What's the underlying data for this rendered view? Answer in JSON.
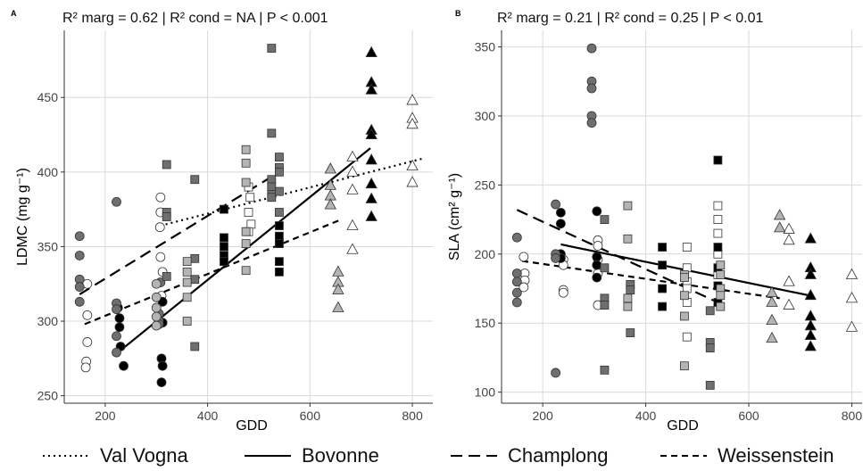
{
  "chart_data": [
    {
      "panel": "A",
      "type": "scatter",
      "title": "R² marg = 0.62  | R² cond = NA  | P < 0.001",
      "xlabel": "GDD",
      "ylabel": "LDMC (mg g⁻¹)",
      "xlim": [
        120,
        840
      ],
      "ylim": [
        245,
        495
      ],
      "xticks": [
        200,
        400,
        600,
        800
      ],
      "yticks": [
        250,
        300,
        350,
        400,
        450
      ],
      "grid": true,
      "series": [
        {
          "name": "Val Vogna",
          "fill": "#ffffff",
          "shape": "circle",
          "points": [
            [
              165,
              286
            ],
            [
              163,
              273
            ],
            [
              162,
              269
            ],
            [
              165,
              304
            ],
            [
              165,
              325
            ],
            [
              308,
              383
            ],
            [
              308,
              373
            ],
            [
              307,
              363
            ],
            [
              308,
              343
            ],
            [
              312,
              333
            ],
            [
              310,
              317
            ],
            [
              480,
              390
            ],
            [
              483,
              383
            ],
            [
              480,
              373
            ],
            [
              485,
              365
            ],
            [
              480,
              360
            ],
            [
              683,
              410
            ],
            [
              683,
              400
            ],
            [
              683,
              388
            ],
            [
              683,
              364
            ],
            [
              683,
              348
            ],
            [
              800,
              448
            ],
            [
              800,
              436
            ],
            [
              800,
              432
            ],
            [
              800,
              404
            ],
            [
              800,
              393
            ]
          ]
        },
        {
          "name": "Bovonne",
          "fill": "#000000",
          "shape": "circle",
          "points": [
            [
              225,
              309
            ],
            [
              228,
              302
            ],
            [
              228,
              296
            ],
            [
              230,
              283
            ],
            [
              236,
              270
            ],
            [
              312,
              313
            ],
            [
              312,
              299
            ],
            [
              310,
              275
            ],
            [
              312,
              270
            ],
            [
              310,
              259
            ],
            [
              432,
              375
            ],
            [
              432,
              356
            ],
            [
              432,
              350
            ],
            [
              432,
              344
            ],
            [
              432,
              340
            ],
            [
              540,
              364
            ],
            [
              540,
              357
            ],
            [
              540,
              352
            ],
            [
              540,
              340
            ],
            [
              540,
              333
            ],
            [
              720,
              480
            ],
            [
              720,
              460
            ],
            [
              720,
              455
            ],
            [
              720,
              428
            ],
            [
              720,
              425
            ],
            [
              720,
              408
            ],
            [
              720,
              392
            ],
            [
              720,
              382
            ],
            [
              720,
              370
            ]
          ]
        },
        {
          "name": "Champlong",
          "fill": "#6f6f6f",
          "shape": "circle",
          "points": [
            [
              150,
              357
            ],
            [
              150,
              344
            ],
            [
              150,
              328
            ],
            [
              150,
              323
            ],
            [
              150,
              313
            ],
            [
              222,
              380
            ],
            [
              222,
              312
            ],
            [
              222,
              308
            ],
            [
              222,
              290
            ],
            [
              222,
              279
            ],
            [
              305,
              305
            ],
            [
              305,
              300
            ],
            [
              305,
              298
            ],
            [
              308,
              326
            ],
            [
              320,
              405
            ],
            [
              320,
              373
            ],
            [
              320,
              370
            ],
            [
              320,
              330
            ],
            [
              375,
              395
            ],
            [
              375,
              342
            ],
            [
              375,
              328
            ],
            [
              375,
              283
            ],
            [
              525,
              483
            ],
            [
              525,
              426
            ],
            [
              525,
              395
            ],
            [
              525,
              390
            ],
            [
              525,
              385
            ],
            [
              525,
              383
            ],
            [
              540,
              410
            ],
            [
              540,
              403
            ],
            [
              540,
              400
            ],
            [
              540,
              387
            ],
            [
              540,
              373
            ]
          ]
        },
        {
          "name": "Weissenstein",
          "fill": "#b4b4b4",
          "shape": "circle",
          "points": [
            [
              300,
              325
            ],
            [
              300,
              316
            ],
            [
              300,
              309
            ],
            [
              300,
              303
            ],
            [
              300,
              297
            ],
            [
              360,
              340
            ],
            [
              360,
              333
            ],
            [
              360,
              326
            ],
            [
              360,
              316
            ],
            [
              360,
              300
            ],
            [
              475,
              415
            ],
            [
              475,
              406
            ],
            [
              475,
              393
            ],
            [
              475,
              360
            ],
            [
              475,
              352
            ],
            [
              475,
              334
            ],
            [
              640,
              402
            ],
            [
              640,
              391
            ],
            [
              640,
              384
            ],
            [
              640,
              378
            ],
            [
              655,
              333
            ],
            [
              655,
              326
            ],
            [
              655,
              321
            ],
            [
              655,
              309
            ]
          ]
        }
      ],
      "fits": [
        {
          "name": "Val Vogna",
          "x": [
            308,
            820
          ],
          "y": [
            364,
            409
          ]
        },
        {
          "name": "Bovonne",
          "x": [
            232,
            718
          ],
          "y": [
            281,
            416
          ]
        },
        {
          "name": "Champlong",
          "x": [
            150,
            540
          ],
          "y": [
            318,
            400
          ]
        },
        {
          "name": "Weissenstein",
          "x": [
            160,
            660
          ],
          "y": [
            298,
            368
          ]
        }
      ]
    },
    {
      "panel": "B",
      "type": "scatter",
      "title": "R² marg = 0.21  | R² cond = 0.25   | P < 0.01",
      "xlabel": "GDD",
      "ylabel": "SLA (cm² g⁻¹)",
      "xlim": [
        120,
        820
      ],
      "ylim": [
        92,
        362
      ],
      "xticks": [
        200,
        400,
        600,
        800
      ],
      "yticks": [
        100,
        150,
        200,
        250,
        300,
        350
      ],
      "grid": true,
      "series": [
        {
          "name": "Val Vogna",
          "fill": "#ffffff",
          "shape": "circle",
          "points": [
            [
              163,
              198
            ],
            [
              165,
              186
            ],
            [
              165,
              181
            ],
            [
              163,
              176
            ],
            [
              240,
              196
            ],
            [
              240,
              192
            ],
            [
              240,
              174
            ],
            [
              240,
              172
            ],
            [
              307,
              210
            ],
            [
              307,
              206
            ],
            [
              307,
              196
            ],
            [
              307,
              186
            ],
            [
              307,
              163
            ],
            [
              480,
              205
            ],
            [
              480,
              190
            ],
            [
              480,
              180
            ],
            [
              480,
              175
            ],
            [
              480,
              165
            ],
            [
              480,
              140
            ],
            [
              540,
              235
            ],
            [
              540,
              225
            ],
            [
              540,
              215
            ],
            [
              540,
              200
            ],
            [
              540,
              190
            ],
            [
              540,
              185
            ],
            [
              678,
              218
            ],
            [
              678,
              210
            ],
            [
              678,
              180
            ],
            [
              678,
              163
            ],
            [
              800,
              185
            ],
            [
              800,
              168
            ],
            [
              800,
              147
            ]
          ]
        },
        {
          "name": "Bovonne",
          "fill": "#000000",
          "shape": "circle",
          "points": [
            [
              235,
              230
            ],
            [
              235,
              222
            ],
            [
              235,
              200
            ],
            [
              235,
              197
            ],
            [
              305,
              231
            ],
            [
              305,
              198
            ],
            [
              305,
              192
            ],
            [
              305,
              183
            ],
            [
              432,
              205
            ],
            [
              432,
              192
            ],
            [
              432,
              175
            ],
            [
              432,
              162
            ],
            [
              540,
              268
            ],
            [
              540,
              205
            ],
            [
              540,
              190
            ],
            [
              540,
              177
            ],
            [
              540,
              165
            ],
            [
              720,
              211
            ],
            [
              720,
              190
            ],
            [
              720,
              185
            ],
            [
              720,
              170
            ],
            [
              720,
              155
            ],
            [
              720,
              148
            ],
            [
              720,
              141
            ],
            [
              720,
              133
            ]
          ]
        },
        {
          "name": "Champlong",
          "fill": "#6f6f6f",
          "shape": "circle",
          "points": [
            [
              150,
              212
            ],
            [
              150,
              186
            ],
            [
              150,
              180
            ],
            [
              150,
              172
            ],
            [
              150,
              165
            ],
            [
              225,
              236
            ],
            [
              225,
              200
            ],
            [
              225,
              197
            ],
            [
              225,
              114
            ],
            [
              295,
              349
            ],
            [
              295,
              325
            ],
            [
              295,
              320
            ],
            [
              295,
              300
            ],
            [
              295,
              295
            ],
            [
              320,
              225
            ],
            [
              320,
              190
            ],
            [
              320,
              168
            ],
            [
              320,
              163
            ],
            [
              320,
              116
            ],
            [
              370,
              178
            ],
            [
              370,
              174
            ],
            [
              370,
              143
            ],
            [
              525,
              159
            ],
            [
              525,
              136
            ],
            [
              525,
              132
            ],
            [
              525,
              105
            ]
          ]
        },
        {
          "name": "Weissenstein",
          "fill": "#b4b4b4",
          "shape": "circle",
          "points": [
            [
              365,
              235
            ],
            [
              365,
              211
            ],
            [
              365,
              168
            ],
            [
              365,
              162
            ],
            [
              475,
              185
            ],
            [
              475,
              183
            ],
            [
              475,
              170
            ],
            [
              475,
              155
            ],
            [
              475,
              119
            ],
            [
              545,
              192
            ],
            [
              545,
              185
            ],
            [
              545,
              175
            ],
            [
              545,
              170
            ],
            [
              545,
              162
            ],
            [
              645,
              172
            ],
            [
              645,
              165
            ],
            [
              645,
              152
            ],
            [
              645,
              139
            ],
            [
              660,
              228
            ],
            [
              660,
              219
            ]
          ]
        }
      ],
      "fits": [
        {
          "name": "Bovonne",
          "x": [
            235,
            718
          ],
          "y": [
            207,
            170
          ]
        },
        {
          "name": "Champlong",
          "x": [
            150,
            540
          ],
          "y": [
            232,
            165
          ]
        },
        {
          "name": "Weissenstein",
          "x": [
            160,
            660
          ],
          "y": [
            195,
            168
          ]
        }
      ]
    }
  ],
  "panels": {
    "a": {
      "tag": "A"
    },
    "b": {
      "tag": "B"
    }
  },
  "legend": {
    "val_vogna": "Val Vogna",
    "bovonne": "Bovonne",
    "champlong": "Champlong",
    "weissenstein": "Weissenstein"
  },
  "colors": {
    "grid": "#d9d9d9",
    "axis": "#333333",
    "line": "#000000"
  }
}
